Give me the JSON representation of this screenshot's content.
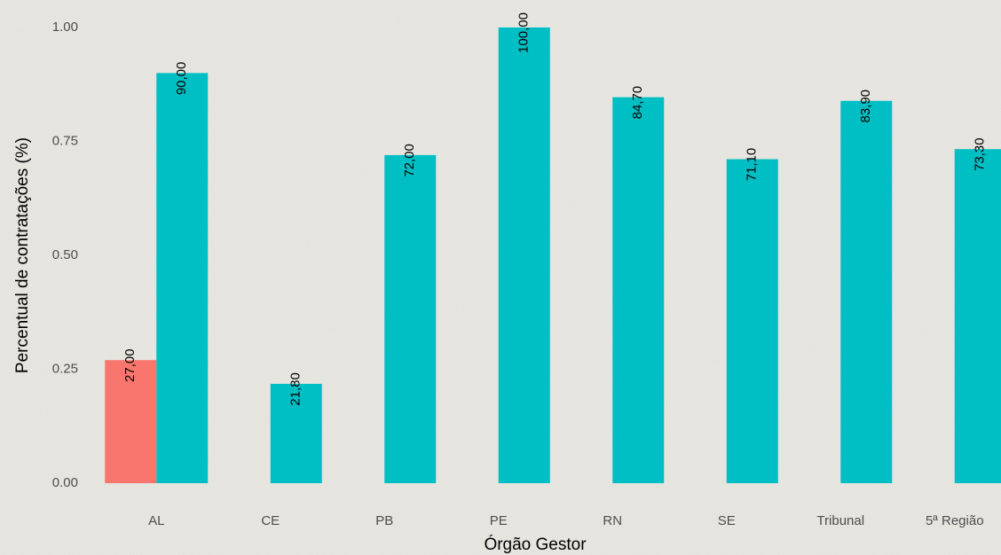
{
  "chart_data": {
    "type": "bar",
    "x_label": "Órgão Gestor",
    "y_label": "Percentual de contratações (%)",
    "categories": [
      "AL",
      "CE",
      "PB",
      "PE",
      "RN",
      "SE",
      "Tribunal",
      "5ª Região"
    ],
    "series": [
      {
        "color": "#f8766d",
        "values": [
          0.27,
          null,
          null,
          null,
          null,
          null,
          null,
          null
        ],
        "value_labels": [
          "27,00",
          null,
          null,
          null,
          null,
          null,
          null,
          null
        ]
      },
      {
        "color": "#00bfc4",
        "values": [
          0.9,
          0.218,
          0.72,
          1.0,
          0.847,
          0.711,
          0.839,
          0.733
        ],
        "value_labels": [
          "90,00",
          "21,80",
          "72,00",
          "100,00",
          "84,70",
          "71,10",
          "83,90",
          "73,30"
        ]
      }
    ],
    "ylim": [
      0,
      1
    ],
    "yticks": [
      {
        "value": 0,
        "label": "0.00"
      },
      {
        "value": 0.25,
        "label": "0.25"
      },
      {
        "value": 0.5,
        "label": "0.50"
      },
      {
        "value": 0.75,
        "label": "0.75"
      },
      {
        "value": 1,
        "label": "1.00"
      }
    ],
    "grid": false
  }
}
